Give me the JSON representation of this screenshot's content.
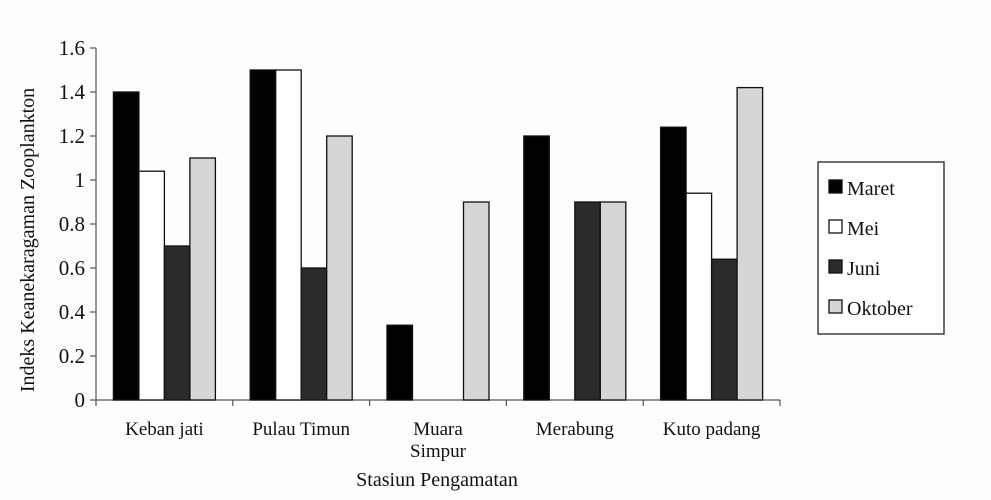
{
  "chart_data": {
    "type": "bar",
    "xlabel": "Stasiun Pengamatan",
    "ylabel": "Indeks Keanekaragaman Zooplankton",
    "ylim": [
      0,
      1.6
    ],
    "yticks": [
      0,
      0.2,
      0.4,
      0.6,
      0.8,
      1,
      1.2,
      1.4,
      1.6
    ],
    "ytick_labels": [
      "0",
      "0.2",
      "0.4",
      "0.6",
      "0.8",
      "1",
      "1.2",
      "1.4",
      "1.6"
    ],
    "grid": false,
    "legend_position": "right",
    "categories": [
      [
        "Keban jati"
      ],
      [
        "Pulau Timun"
      ],
      [
        "Muara",
        "Simpur"
      ],
      [
        "Merabung"
      ],
      [
        "Kuto padang"
      ]
    ],
    "series": [
      {
        "name": "Maret",
        "color": "#000000",
        "values": [
          1.4,
          1.5,
          0.34,
          1.2,
          1.24
        ]
      },
      {
        "name": "Mei",
        "color": "#ffffff",
        "values": [
          1.04,
          1.5,
          null,
          null,
          0.94
        ]
      },
      {
        "name": "Juni",
        "color": "#2b2b2b",
        "values": [
          0.7,
          0.6,
          null,
          0.9,
          0.64
        ]
      },
      {
        "name": "Oktober",
        "color": "#d6d6d6",
        "values": [
          1.1,
          1.2,
          0.9,
          0.9,
          1.42
        ]
      }
    ]
  }
}
